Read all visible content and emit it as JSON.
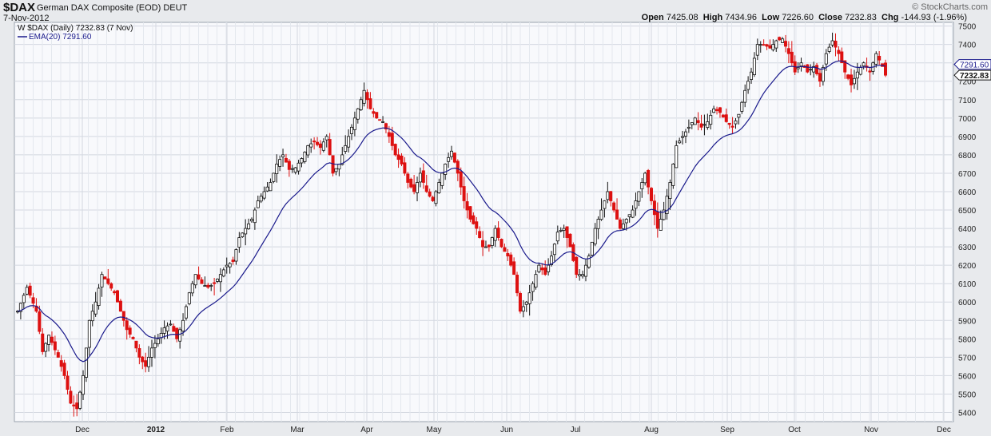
{
  "header": {
    "symbol": "$DAX",
    "name": "German DAX Composite (EOD)",
    "exchange": "DEUT",
    "date": "7-Nov-2012",
    "brand": "© StockCharts.com",
    "open_label": "Open",
    "open": "7425.08",
    "high_label": "High",
    "high": "7434.96",
    "low_label": "Low",
    "low": "7226.60",
    "close_label": "Close",
    "close": "7232.83",
    "chg_label": "Chg",
    "chg": "-144.93 (-1.96%)"
  },
  "legend": {
    "price_text": "$DAX (Daily) 7232.83 (7 Nov)",
    "ema_text": "EMA(20) 7291.60"
  },
  "colors": {
    "up": "#111111",
    "down": "#dd1111",
    "ema": "#1a1a8c",
    "plot_bg": "#f8f9fc",
    "grid": "#d3d8e0"
  },
  "chart_data": {
    "type": "candlestick",
    "series": [
      {
        "name": "$DAX",
        "style": "candlestick"
      },
      {
        "name": "EMA(20)",
        "style": "line"
      }
    ],
    "ylim": [
      5350,
      7520
    ],
    "y_ticks": [
      5400,
      5500,
      5600,
      5700,
      5800,
      5900,
      6000,
      6100,
      6200,
      6300,
      6400,
      6500,
      6600,
      6700,
      6800,
      6900,
      7000,
      7100,
      7200,
      7300,
      7400,
      7500
    ],
    "x_labels": [
      "Dec",
      "2012",
      "Feb",
      "Mar",
      "Apr",
      "May",
      "Jun",
      "Jul",
      "Aug",
      "Sep",
      "Oct",
      "Nov",
      "Dec"
    ],
    "last_value_labels": [
      "7291.60",
      "7232.83"
    ],
    "close_anchors": [
      [
        0,
        5950
      ],
      [
        3,
        6080
      ],
      [
        6,
        5950
      ],
      [
        8,
        5730
      ],
      [
        10,
        5820
      ],
      [
        13,
        5700
      ],
      [
        15,
        5600
      ],
      [
        17,
        5450
      ],
      [
        19,
        5420
      ],
      [
        21,
        5600
      ],
      [
        23,
        5900
      ],
      [
        25,
        6000
      ],
      [
        27,
        6150
      ],
      [
        29,
        6100
      ],
      [
        31,
        6050
      ],
      [
        33,
        5950
      ],
      [
        35,
        5850
      ],
      [
        37,
        5800
      ],
      [
        39,
        5700
      ],
      [
        41,
        5650
      ],
      [
        43,
        5750
      ],
      [
        45,
        5800
      ],
      [
        47,
        5860
      ],
      [
        49,
        5880
      ],
      [
        51,
        5800
      ],
      [
        53,
        5900
      ],
      [
        55,
        6050
      ],
      [
        57,
        6150
      ],
      [
        59,
        6100
      ],
      [
        61,
        6080
      ],
      [
        63,
        6100
      ],
      [
        65,
        6150
      ],
      [
        67,
        6200
      ],
      [
        69,
        6220
      ],
      [
        71,
        6350
      ],
      [
        73,
        6400
      ],
      [
        75,
        6450
      ],
      [
        77,
        6550
      ],
      [
        79,
        6600
      ],
      [
        81,
        6650
      ],
      [
        83,
        6750
      ],
      [
        85,
        6800
      ],
      [
        87,
        6720
      ],
      [
        89,
        6730
      ],
      [
        91,
        6780
      ],
      [
        93,
        6850
      ],
      [
        95,
        6870
      ],
      [
        97,
        6840
      ],
      [
        99,
        6900
      ],
      [
        101,
        6700
      ],
      [
        103,
        6750
      ],
      [
        105,
        6850
      ],
      [
        107,
        6950
      ],
      [
        109,
        7050
      ],
      [
        111,
        7150
      ],
      [
        113,
        7050
      ],
      [
        115,
        7000
      ],
      [
        117,
        6980
      ],
      [
        119,
        6900
      ],
      [
        121,
        6800
      ],
      [
        123,
        6750
      ],
      [
        125,
        6650
      ],
      [
        127,
        6600
      ],
      [
        129,
        6700
      ],
      [
        131,
        6600
      ],
      [
        133,
        6550
      ],
      [
        135,
        6650
      ],
      [
        137,
        6750
      ],
      [
        139,
        6820
      ],
      [
        141,
        6700
      ],
      [
        143,
        6550
      ],
      [
        145,
        6450
      ],
      [
        147,
        6400
      ],
      [
        149,
        6300
      ],
      [
        151,
        6300
      ],
      [
        153,
        6400
      ],
      [
        155,
        6300
      ],
      [
        157,
        6250
      ],
      [
        159,
        6150
      ],
      [
        161,
        5950
      ],
      [
        163,
        6000
      ],
      [
        165,
        6100
      ],
      [
        167,
        6200
      ],
      [
        169,
        6150
      ],
      [
        171,
        6250
      ],
      [
        173,
        6380
      ],
      [
        175,
        6400
      ],
      [
        177,
        6300
      ],
      [
        179,
        6150
      ],
      [
        181,
        6150
      ],
      [
        183,
        6250
      ],
      [
        185,
        6400
      ],
      [
        187,
        6500
      ],
      [
        189,
        6600
      ],
      [
        191,
        6500
      ],
      [
        193,
        6400
      ],
      [
        195,
        6450
      ],
      [
        197,
        6500
      ],
      [
        199,
        6600
      ],
      [
        201,
        6700
      ],
      [
        203,
        6550
      ],
      [
        205,
        6400
      ],
      [
        207,
        6500
      ],
      [
        209,
        6650
      ],
      [
        211,
        6850
      ],
      [
        213,
        6900
      ],
      [
        215,
        6950
      ],
      [
        217,
        7000
      ],
      [
        219,
        6950
      ],
      [
        221,
        6980
      ],
      [
        223,
        7050
      ],
      [
        225,
        7030
      ],
      [
        227,
        6980
      ],
      [
        229,
        6950
      ],
      [
        231,
        7020
      ],
      [
        233,
        7150
      ],
      [
        235,
        7250
      ],
      [
        237,
        7400
      ],
      [
        239,
        7400
      ],
      [
        241,
        7380
      ],
      [
        243,
        7420
      ],
      [
        245,
        7430
      ],
      [
        247,
        7350
      ],
      [
        249,
        7250
      ],
      [
        251,
        7300
      ],
      [
        253,
        7250
      ],
      [
        255,
        7280
      ],
      [
        257,
        7200
      ],
      [
        259,
        7350
      ],
      [
        261,
        7420
      ],
      [
        263,
        7350
      ],
      [
        265,
        7250
      ],
      [
        267,
        7180
      ],
      [
        269,
        7250
      ],
      [
        271,
        7300
      ],
      [
        273,
        7250
      ],
      [
        275,
        7350
      ],
      [
        277,
        7280
      ],
      [
        278,
        7232.83
      ]
    ],
    "ema_last": 7291.6,
    "ema_period": 20
  }
}
